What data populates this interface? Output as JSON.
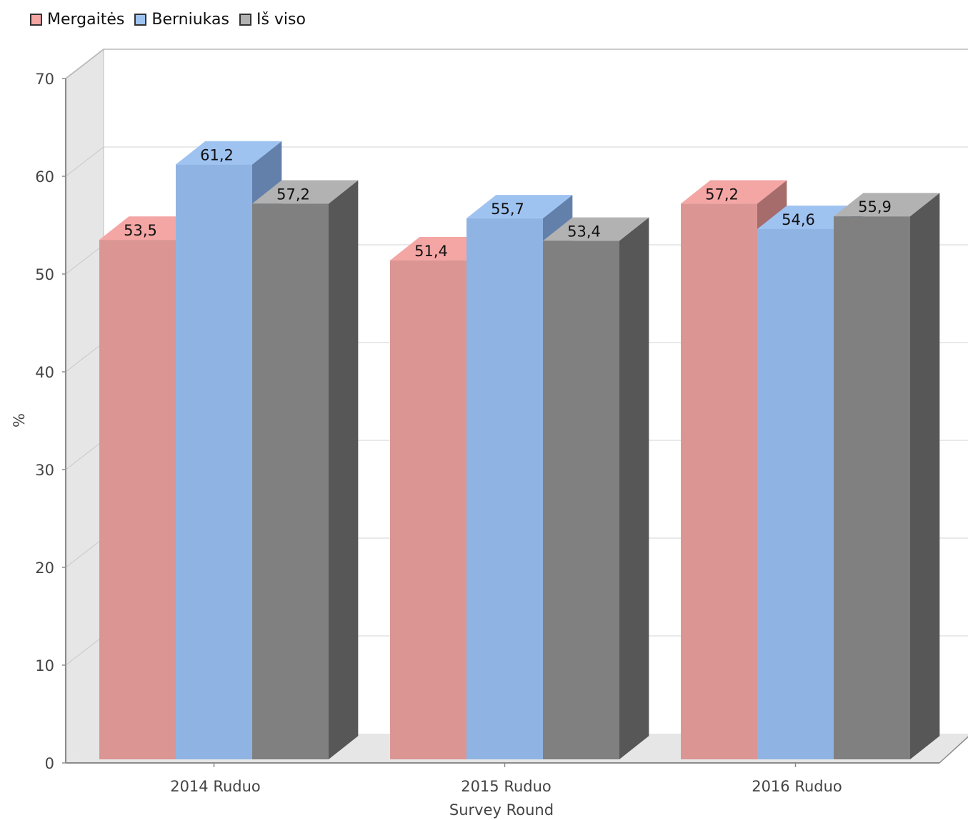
{
  "chart_data": {
    "type": "bar",
    "categories": [
      "2014 Ruduo",
      "2015 Ruduo",
      "2016 Ruduo"
    ],
    "series": [
      {
        "name": "Mergaitės",
        "values": [
          53.5,
          51.4,
          57.2
        ],
        "labels": [
          "53,5",
          "51,4",
          "57,2"
        ],
        "color": "#db9694",
        "top_color": "#f4a6a4",
        "side_color": "#a56c6b"
      },
      {
        "name": "Berniukas",
        "values": [
          61.2,
          55.7,
          54.6
        ],
        "labels": [
          "61,2",
          "55,7",
          "54,6"
        ],
        "color": "#8fb4e3",
        "top_color": "#9fc3f1",
        "side_color": "#6380ab"
      },
      {
        "name": "Iš viso",
        "values": [
          57.2,
          53.4,
          55.9
        ],
        "labels": [
          "57,2",
          "53,4",
          "55,9"
        ],
        "color": "#808080",
        "top_color": "#b2b2b2",
        "side_color": "#575757"
      }
    ],
    "xlabel": "Survey Round",
    "ylabel": "%",
    "ylim": [
      0,
      70
    ],
    "yticks": [
      "0",
      "10",
      "20",
      "30",
      "40",
      "50",
      "60",
      "70"
    ],
    "grid": true,
    "legend_position": "top-left",
    "three_d": true
  }
}
